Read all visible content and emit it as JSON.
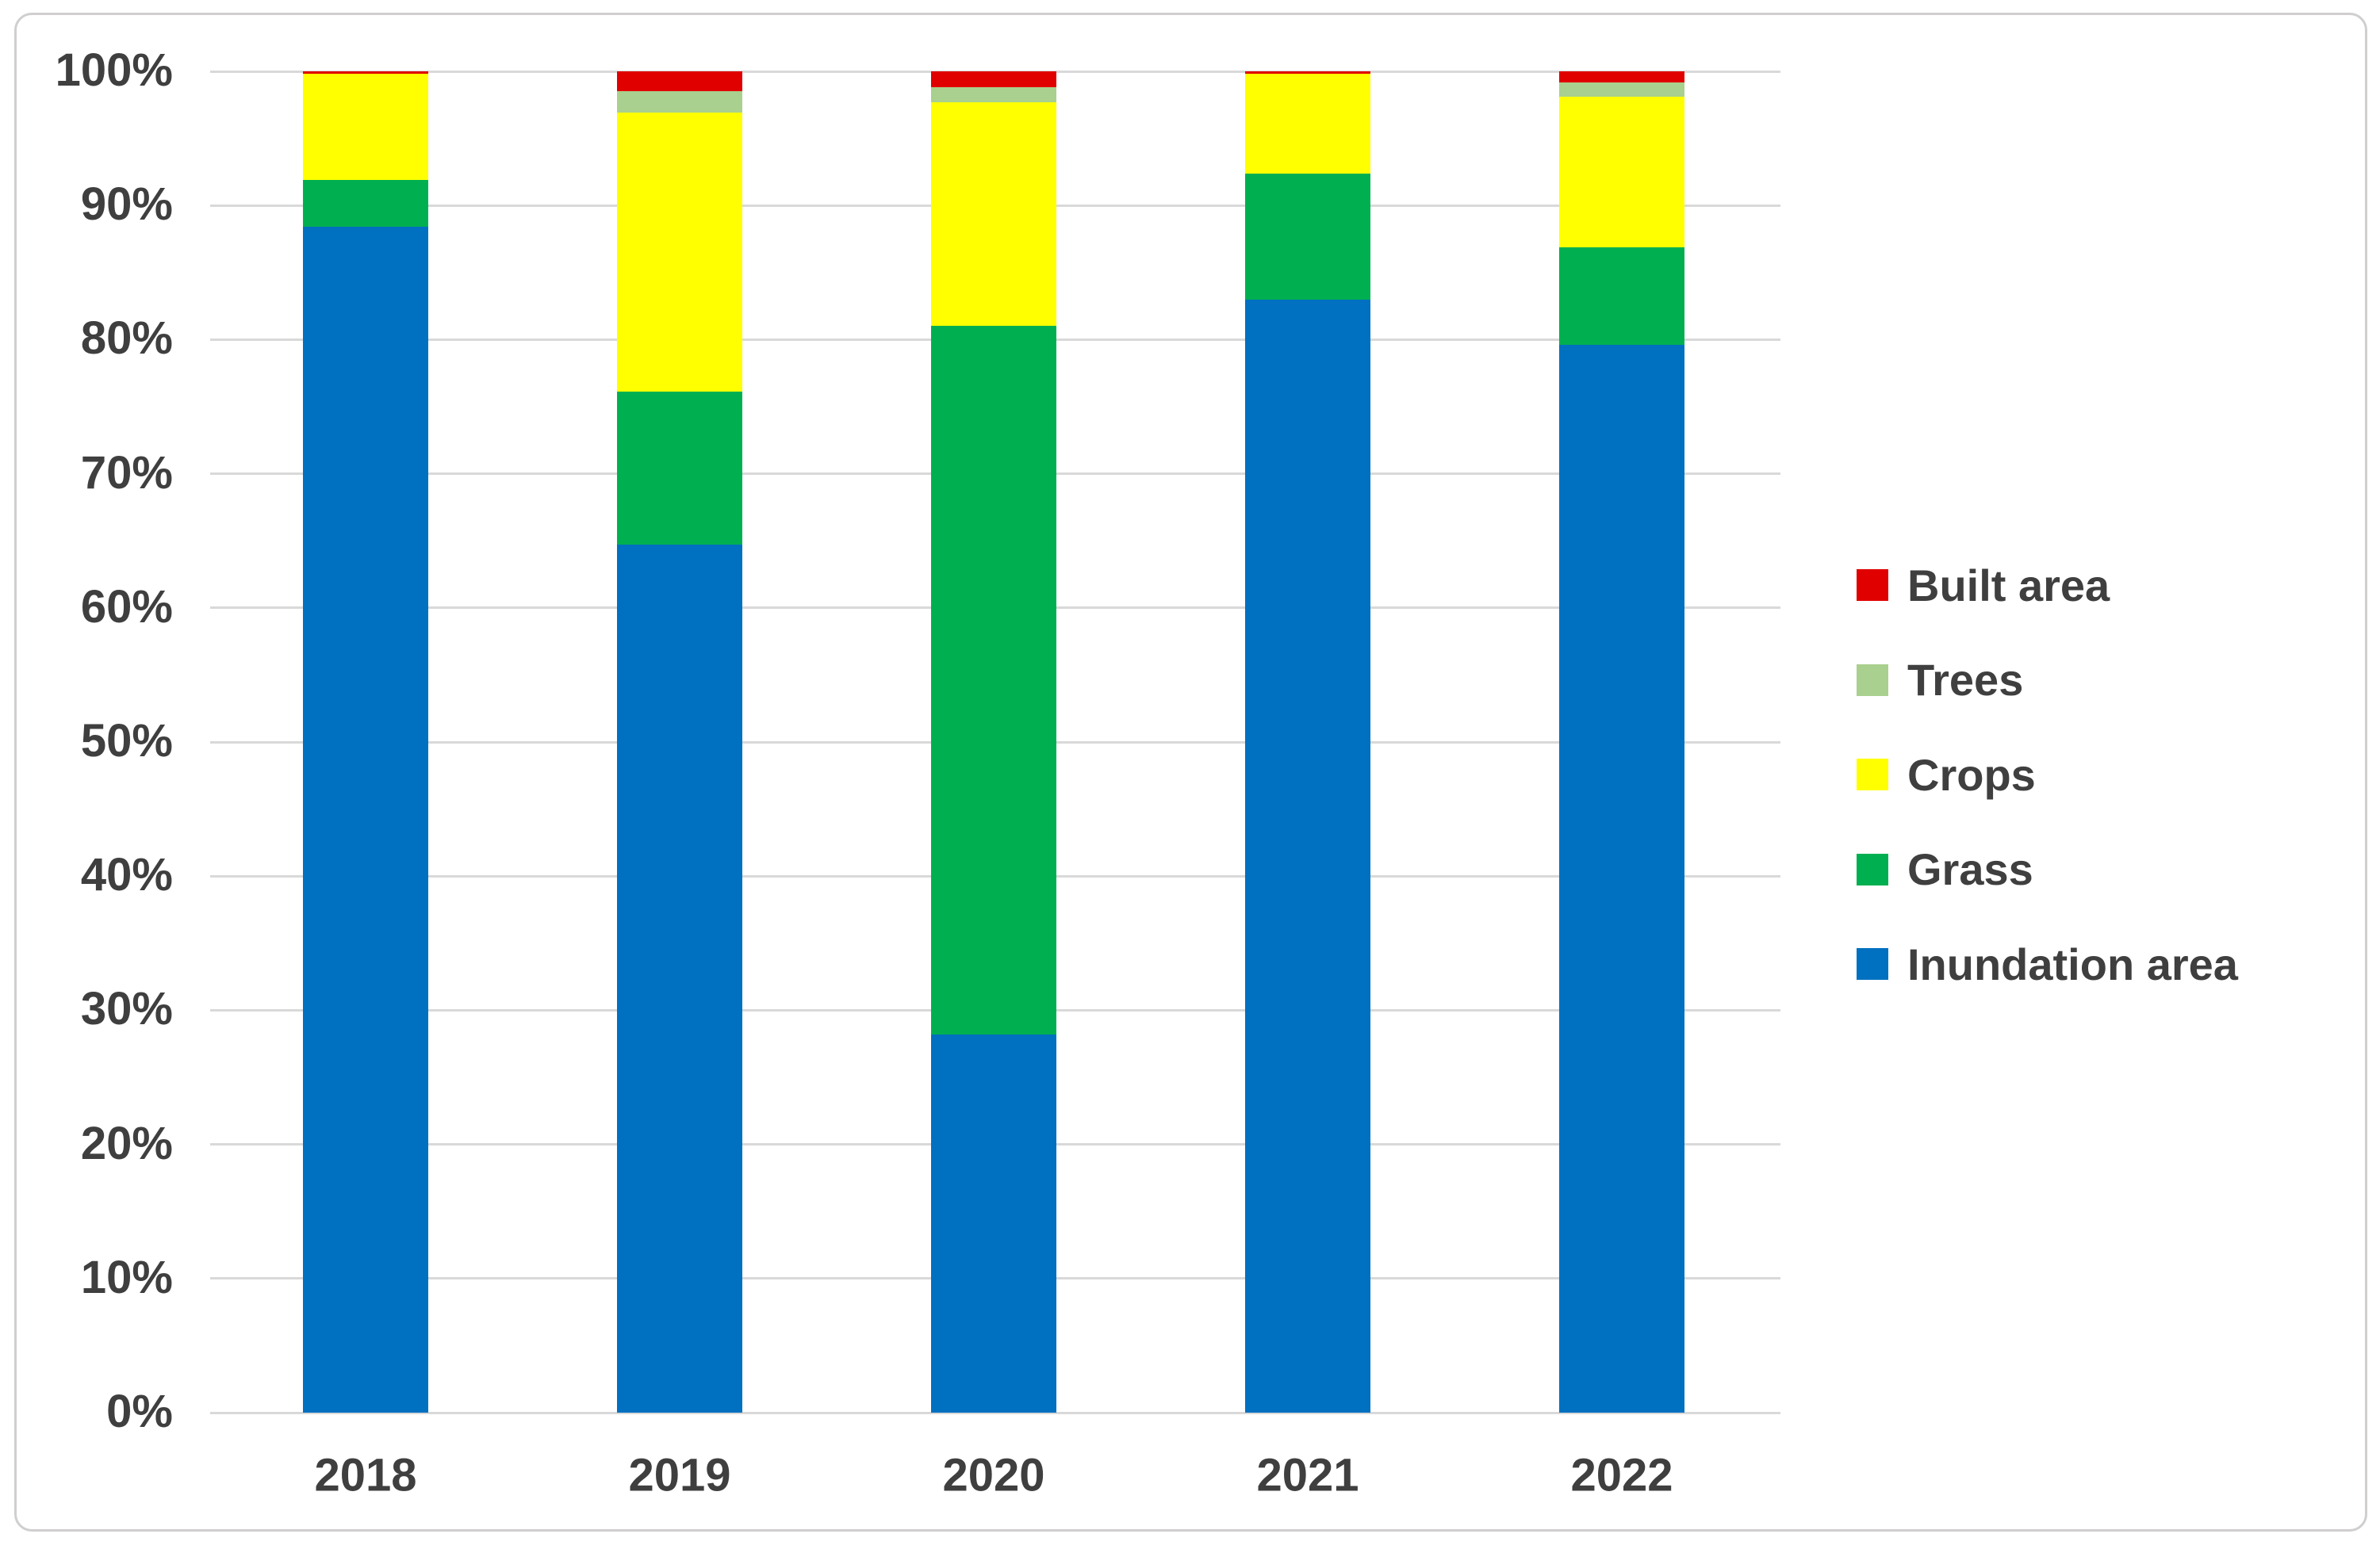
{
  "chart_data": {
    "type": "bar",
    "variant": "stacked-100-percent",
    "title": "",
    "xlabel": "",
    "ylabel": "",
    "categories": [
      "2018",
      "2019",
      "2020",
      "2021",
      "2022"
    ],
    "series": [
      {
        "name": "Inundation area",
        "color": "#0070C0",
        "values": [
          88.4,
          64.7,
          28.2,
          83.0,
          79.6
        ]
      },
      {
        "name": "Grass",
        "color": "#00B050",
        "values": [
          3.5,
          11.4,
          52.8,
          9.4,
          7.3
        ]
      },
      {
        "name": "Crops",
        "color": "#FFFF00",
        "values": [
          7.9,
          20.8,
          16.7,
          7.4,
          11.2
        ]
      },
      {
        "name": "Trees",
        "color": "#A9D08E",
        "values": [
          0.0,
          1.6,
          1.1,
          0.0,
          1.1
        ]
      },
      {
        "name": "Built area",
        "color": "#E00000",
        "values": [
          0.2,
          1.5,
          1.2,
          0.2,
          0.8
        ]
      }
    ],
    "stack_order_note": "series listed bottom-to-top",
    "y_axis": {
      "min": 0,
      "max": 100,
      "step": 10,
      "tick_labels": [
        "0%",
        "10%",
        "20%",
        "30%",
        "40%",
        "50%",
        "60%",
        "70%",
        "80%",
        "90%",
        "100%"
      ]
    },
    "legend": {
      "position": "right",
      "items": [
        "Built area",
        "Trees",
        "Crops",
        "Grass",
        "Inundation area"
      ]
    },
    "grid": "horizontal"
  },
  "styles": {
    "gridline_color": "#d9d9d9",
    "frame_border_color": "#d0cece",
    "label_text_color": "#3f3f3f",
    "background_color": "#ffffff"
  }
}
